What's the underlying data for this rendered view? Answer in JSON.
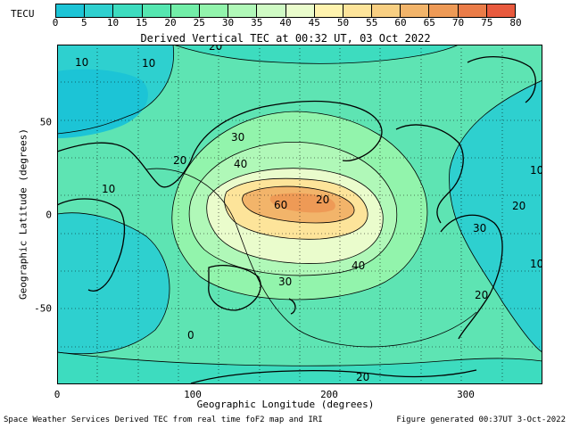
{
  "colorbar": {
    "label": "TECU",
    "ticks": [
      "0",
      "5",
      "10",
      "15",
      "20",
      "25",
      "30",
      "35",
      "40",
      "45",
      "50",
      "55",
      "60",
      "65",
      "70",
      "75",
      "80"
    ],
    "colors": [
      "#1cc4d6",
      "#2fd0cf",
      "#3ddcbf",
      "#55e6b0",
      "#72eea8",
      "#92f4ac",
      "#b0f8b8",
      "#cffac4",
      "#eafccc",
      "#fff3ae",
      "#fde49a",
      "#f8cf82",
      "#f2b46a",
      "#ee9a56",
      "#ea7c48",
      "#e85a3e"
    ]
  },
  "map": {
    "title": "Derived Vertical TEC at 00:32 UT, 03 Oct 2022",
    "xlabel": "Geographic Longitude (degrees)",
    "ylabel": "Geographic Latitude (degrees)",
    "xticks": [
      "0",
      "100",
      "200",
      "300"
    ],
    "yticks": [
      "50",
      "0",
      "-50"
    ],
    "xlim": [
      0,
      360
    ],
    "ylim": [
      -90,
      90
    ],
    "contour_labels": [
      "10",
      "20",
      "20",
      "10",
      "30",
      "40",
      "60",
      "20",
      "30",
      "40",
      "30",
      "10",
      "20",
      "0",
      "20",
      "10",
      "20",
      "10"
    ]
  },
  "footer": {
    "left": "Space Weather Services Derived TEC from real time foF2 map and IRI",
    "right": "Figure generated 00:37UT 3-Oct-2022"
  }
}
